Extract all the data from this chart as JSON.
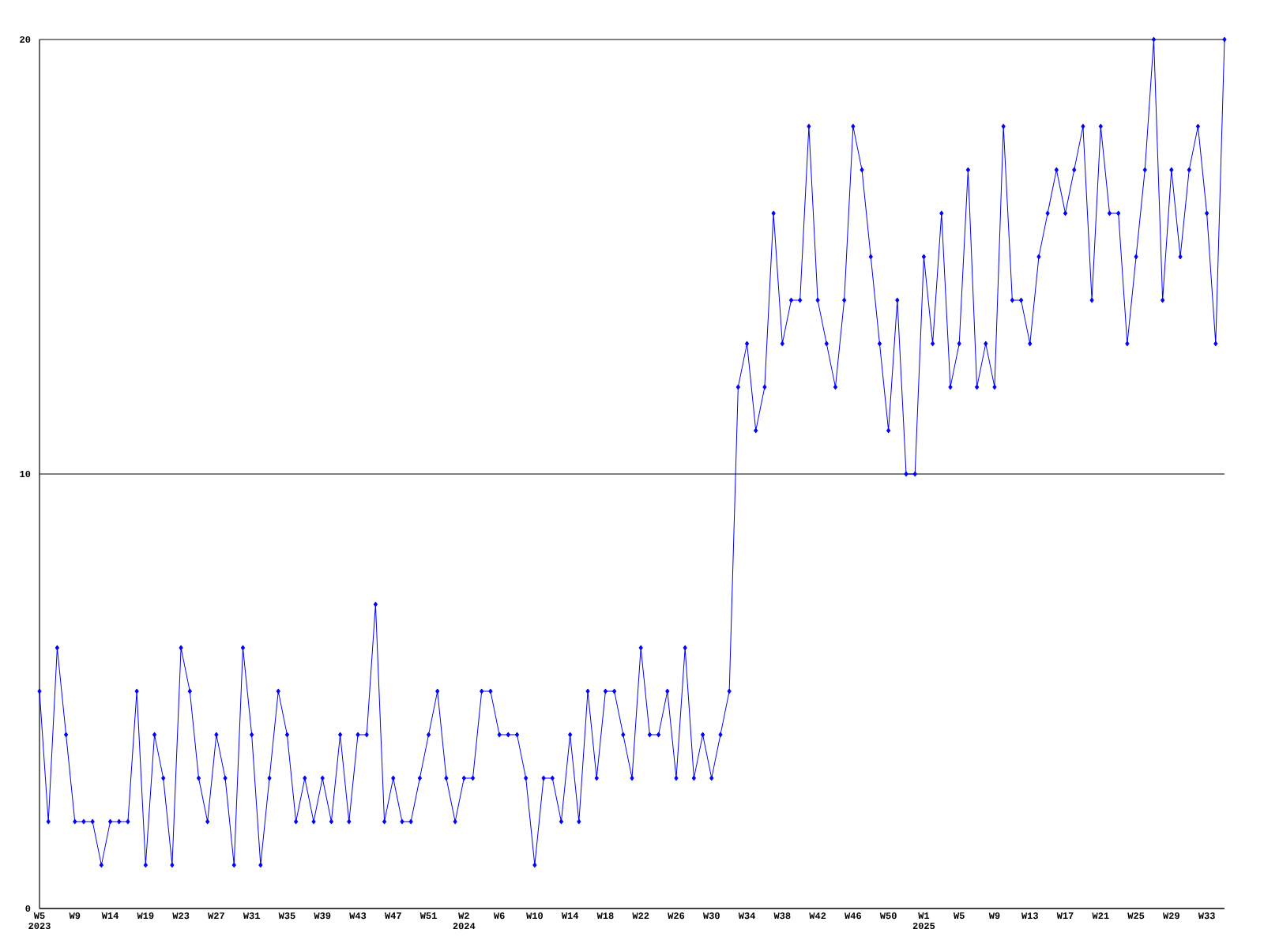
{
  "chart_data": {
    "type": "line",
    "categories": [
      "W5 2023",
      null,
      null,
      null,
      "W9",
      null,
      null,
      null,
      "W14",
      null,
      null,
      null,
      "W19",
      null,
      null,
      null,
      "W23",
      null,
      null,
      null,
      "W27",
      null,
      null,
      null,
      "W31",
      null,
      null,
      null,
      "W35",
      null,
      null,
      null,
      "W39",
      null,
      null,
      null,
      "W43",
      null,
      null,
      null,
      "W47",
      null,
      null,
      null,
      "W51",
      null,
      null,
      null,
      "W2 2024",
      null,
      null,
      null,
      "W6",
      null,
      null,
      null,
      "W10",
      null,
      null,
      null,
      "W14",
      null,
      null,
      null,
      "W18",
      null,
      null,
      null,
      "W22",
      null,
      null,
      null,
      "W26",
      null,
      null,
      null,
      "W30",
      null,
      null,
      null,
      "W34",
      null,
      null,
      null,
      "W38",
      null,
      null,
      null,
      "W42",
      null,
      null,
      null,
      "W46",
      null,
      null,
      null,
      "W50",
      null,
      null,
      null,
      "W1 2025",
      null,
      null,
      null,
      "W5",
      null,
      null,
      null,
      "W9",
      null,
      null,
      null,
      "W13",
      null,
      null,
      null,
      "W17",
      null,
      null,
      null,
      "W21",
      null,
      null,
      null,
      "W25",
      null,
      null,
      null,
      "W29",
      null,
      null,
      null,
      "W33",
      null,
      null
    ],
    "values": [
      5,
      2,
      6,
      4,
      2,
      2,
      2,
      1,
      2,
      2,
      2,
      5,
      1,
      4,
      3,
      1,
      6,
      5,
      3,
      2,
      4,
      3,
      1,
      6,
      4,
      1,
      3,
      5,
      4,
      2,
      3,
      2,
      3,
      2,
      4,
      2,
      4,
      4,
      7,
      2,
      3,
      2,
      2,
      3,
      4,
      5,
      3,
      2,
      3,
      3,
      5,
      5,
      4,
      4,
      4,
      3,
      1,
      3,
      3,
      2,
      4,
      2,
      5,
      3,
      5,
      5,
      4,
      3,
      6,
      4,
      4,
      5,
      3,
      6,
      3,
      4,
      3,
      4,
      5,
      12,
      13,
      11,
      12,
      16,
      13,
      14,
      14,
      18,
      14,
      13,
      12,
      14,
      18,
      17,
      15,
      13,
      11,
      14,
      10,
      10,
      15,
      13,
      16,
      12,
      13,
      17,
      12,
      13,
      12,
      18,
      14,
      14,
      13,
      15,
      16,
      17,
      16,
      17,
      18,
      14,
      18,
      16,
      16,
      13,
      15,
      17,
      20,
      14,
      17,
      15,
      17,
      18,
      16,
      13,
      20
    ],
    "color": "#0000ff",
    "ylim": [
      0,
      20
    ],
    "yticks": [
      0,
      10,
      20
    ],
    "grid": "y",
    "marker": "diamond"
  }
}
